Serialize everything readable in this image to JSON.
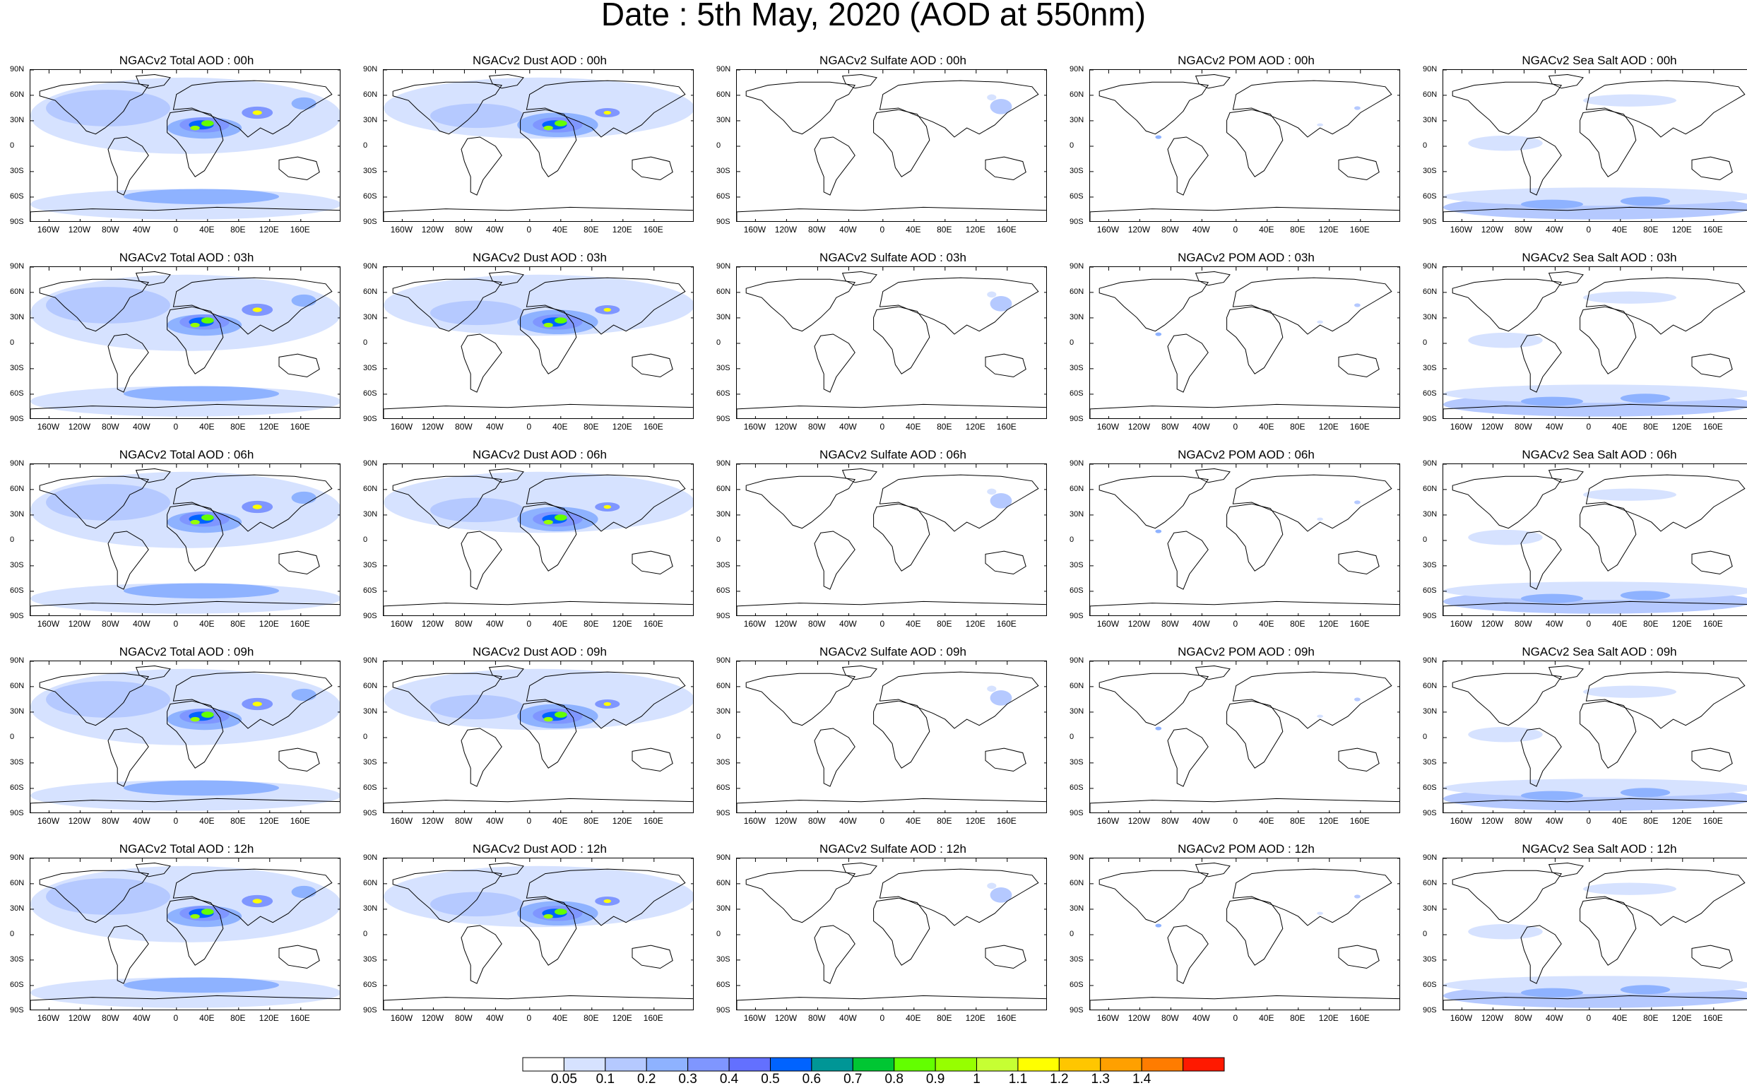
{
  "title": "Date : 5th May, 2020 (AOD at 550nm)",
  "lat_labels": [
    "90N",
    "60N",
    "30N",
    "0",
    "30S",
    "60S",
    "90S"
  ],
  "lon_labels": [
    "160W",
    "120W",
    "80W",
    "40W",
    "0",
    "40E",
    "80E",
    "120E",
    "160E"
  ],
  "panels": [
    {
      "title": "NGACv2 Total AOD : 00h",
      "species": "total"
    },
    {
      "title": "NGACv2 Dust AOD : 00h",
      "species": "dust"
    },
    {
      "title": "NGACv2 Sulfate AOD : 00h",
      "species": "sulfate"
    },
    {
      "title": "NGACv2 POM AOD : 00h",
      "species": "pom"
    },
    {
      "title": "NGACv2 Sea Salt AOD : 00h",
      "species": "seasalt"
    },
    {
      "title": "NGACv2 Total AOD : 03h",
      "species": "total"
    },
    {
      "title": "NGACv2 Dust AOD : 03h",
      "species": "dust"
    },
    {
      "title": "NGACv2 Sulfate AOD : 03h",
      "species": "sulfate"
    },
    {
      "title": "NGACv2 POM AOD : 03h",
      "species": "pom"
    },
    {
      "title": "NGACv2 Sea Salt AOD : 03h",
      "species": "seasalt"
    },
    {
      "title": "NGACv2 Total AOD : 06h",
      "species": "total"
    },
    {
      "title": "NGACv2 Dust AOD : 06h",
      "species": "dust"
    },
    {
      "title": "NGACv2 Sulfate AOD : 06h",
      "species": "sulfate"
    },
    {
      "title": "NGACv2 POM AOD : 06h",
      "species": "pom"
    },
    {
      "title": "NGACv2 Sea Salt AOD : 06h",
      "species": "seasalt"
    },
    {
      "title": "NGACv2 Total AOD : 09h",
      "species": "total"
    },
    {
      "title": "NGACv2 Dust AOD : 09h",
      "species": "dust"
    },
    {
      "title": "NGACv2 Sulfate AOD : 09h",
      "species": "sulfate"
    },
    {
      "title": "NGACv2 POM AOD : 09h",
      "species": "pom"
    },
    {
      "title": "NGACv2 Sea Salt  AOD : 09h",
      "species": "seasalt"
    },
    {
      "title": "NGACv2 Total AOD  : 12h",
      "species": "total"
    },
    {
      "title": "NGACv2 Dust AOD : 12h",
      "species": "dust"
    },
    {
      "title": "NGACv2 Sulfate AOD : 12h",
      "species": "sulfate"
    },
    {
      "title": "NGACv2 POM  AOD : 12h",
      "species": "pom"
    },
    {
      "title": "NGACv2 Sea Salt  AOD : 12h",
      "species": "seasalt"
    }
  ],
  "colorbar": {
    "labels": [
      "0.05",
      "0.1",
      "0.2",
      "0.3",
      "0.4",
      "0.5",
      "0.6",
      "0.7",
      "0.8",
      "0.9",
      "1",
      "1.1",
      "1.2",
      "1.3",
      "1.4"
    ],
    "colors": [
      "#ffffff",
      "#d6e2ff",
      "#b5c9ff",
      "#8eb2ff",
      "#7f96ff",
      "#6370ff",
      "#0063ff",
      "#009696",
      "#00c633",
      "#63ff00",
      "#96ff00",
      "#c6ff33",
      "#ffff00",
      "#ffc600",
      "#ffa000",
      "#ff7c00",
      "#ff1900"
    ]
  }
}
